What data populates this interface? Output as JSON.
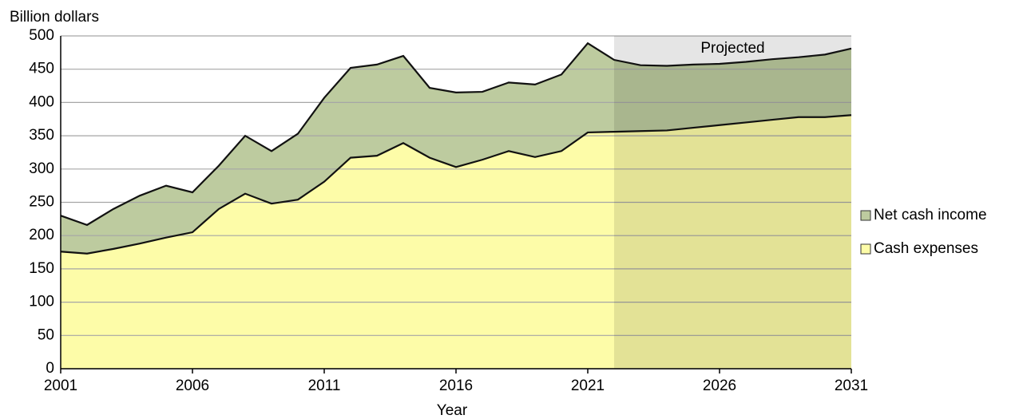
{
  "chart_data": {
    "type": "stacked_area",
    "y_axis_label": "Billion dollars",
    "x_axis_label": "Year",
    "x": [
      2001,
      2002,
      2003,
      2004,
      2005,
      2006,
      2007,
      2008,
      2009,
      2010,
      2011,
      2012,
      2013,
      2014,
      2015,
      2016,
      2017,
      2018,
      2019,
      2020,
      2021,
      2022,
      2023,
      2024,
      2025,
      2026,
      2027,
      2028,
      2029,
      2030,
      2031
    ],
    "series": [
      {
        "name": "Cash expenses",
        "color": "#fdfca8",
        "values": [
          176,
          173,
          180,
          188,
          197,
          205,
          240,
          263,
          248,
          254,
          281,
          317,
          320,
          339,
          317,
          303,
          314,
          327,
          318,
          327,
          355,
          356,
          357,
          358,
          362,
          366,
          370,
          374,
          378,
          378,
          381
        ]
      },
      {
        "name": "Net cash income",
        "color": "#bdcb9f",
        "values": [
          54,
          43,
          60,
          72,
          78,
          60,
          65,
          87,
          79,
          99,
          126,
          135,
          137,
          131,
          105,
          112,
          102,
          103,
          109,
          115,
          134,
          108,
          99,
          97,
          95,
          92,
          91,
          91,
          90,
          94,
          100
        ]
      }
    ],
    "shaded_region": {
      "label": "Projected",
      "x": [
        2022,
        2031
      ]
    },
    "xlim": [
      2001,
      2031
    ],
    "xticks": [
      2001,
      2006,
      2011,
      2016,
      2021,
      2026,
      2031
    ],
    "ylim": [
      0,
      500
    ],
    "yticks": [
      0,
      50,
      100,
      150,
      200,
      250,
      300,
      350,
      400,
      450,
      500
    ],
    "grid": true,
    "legend": "right"
  }
}
